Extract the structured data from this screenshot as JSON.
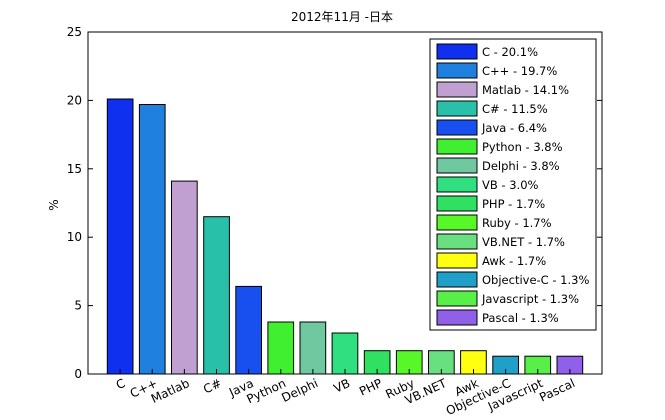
{
  "chart_data": {
    "type": "bar",
    "title": "2012年11月 -日本",
    "ylabel": "%",
    "xlabel": "",
    "ylim": [
      0,
      25
    ],
    "yticks": [
      0,
      5,
      10,
      15,
      20,
      25
    ],
    "grid": false,
    "legend_position": "top-right",
    "categories": [
      "C",
      "C++",
      "Matlab",
      "C#",
      "Java",
      "Python",
      "Delphi",
      "VB",
      "PHP",
      "Ruby",
      "VB.NET",
      "Awk",
      "Objective-C",
      "Javascript",
      "Pascal"
    ],
    "values": [
      20.1,
      19.7,
      14.1,
      11.5,
      6.4,
      3.8,
      3.8,
      3.0,
      1.7,
      1.7,
      1.7,
      1.7,
      1.3,
      1.3,
      1.3
    ],
    "colors": [
      "#1030f0",
      "#2080e0",
      "#c0a0d0",
      "#28c0a8",
      "#1850f0",
      "#40f030",
      "#70c8a0",
      "#30e080",
      "#30e060",
      "#58f828",
      "#68e080",
      "#ffff10",
      "#20a0c8",
      "#58f048",
      "#9060e8"
    ],
    "legend_labels": [
      "C - 20.1%",
      "C++ - 19.7%",
      "Matlab - 14.1%",
      "C# - 11.5%",
      "Java - 6.4%",
      "Python - 3.8%",
      "Delphi - 3.8%",
      "VB - 3.0%",
      "PHP - 1.7%",
      "Ruby - 1.7%",
      "VB.NET - 1.7%",
      "Awk - 1.7%",
      "Objective-C - 1.3%",
      "Javascript - 1.3%",
      "Pascal - 1.3%"
    ]
  }
}
